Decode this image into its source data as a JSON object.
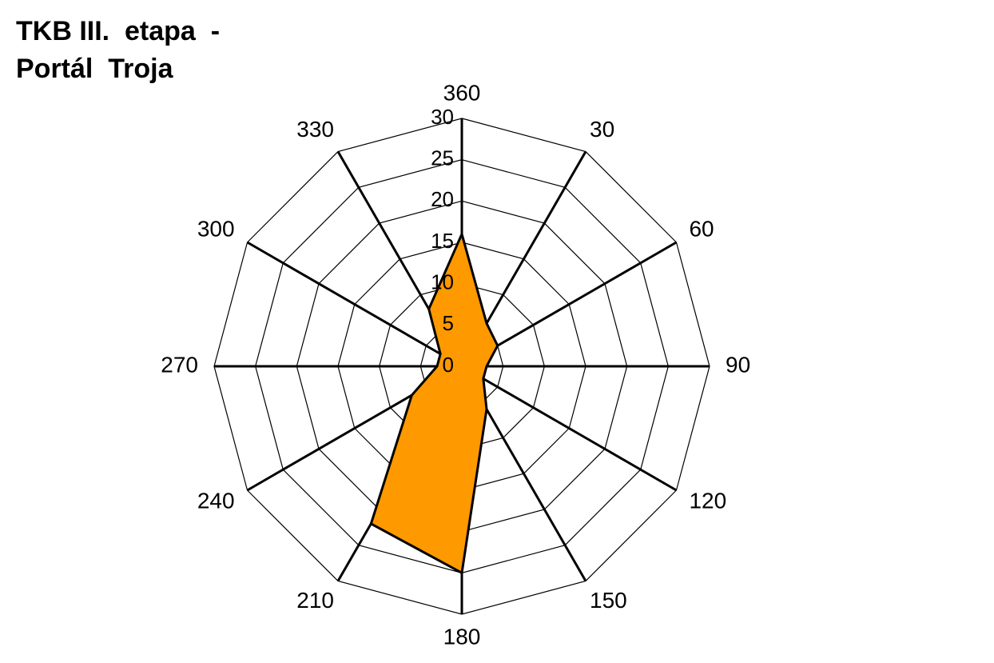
{
  "chart_data": {
    "type": "radar",
    "title": [
      "TKB III.  etapa  -",
      "Portál  Troja"
    ],
    "categories": [
      "360",
      "30",
      "60",
      "90",
      "120",
      "150",
      "180",
      "210",
      "240",
      "270",
      "300",
      "330"
    ],
    "values": [
      16,
      6,
      5,
      3,
      3,
      6,
      25,
      22,
      7,
      3,
      3,
      8
    ],
    "color": "#ff9900",
    "rlim": [
      0,
      30
    ],
    "rticks": [
      0,
      5,
      10,
      15,
      20,
      25,
      30
    ],
    "grid": true
  }
}
